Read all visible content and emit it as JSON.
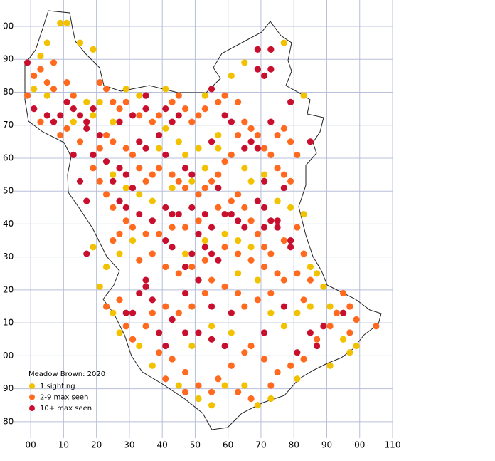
{
  "chart_data": {
    "type": "scatter",
    "legend_title": "Meadow Brown:  2020",
    "xlim": [
      -5,
      110
    ],
    "ylim": [
      -25,
      108
    ],
    "grid": true,
    "xticks": [
      {
        "value": 0,
        "label": "00"
      },
      10,
      20,
      30,
      40,
      50,
      60,
      70,
      80,
      90,
      {
        "value": 100,
        "label": "00"
      },
      110
    ],
    "yticks": [
      {
        "value": 100,
        "label": "00"
      },
      90,
      80,
      70,
      60,
      50,
      40,
      30,
      20,
      10,
      {
        "value": 0,
        "label": "00"
      },
      {
        "value": -10,
        "label": "90"
      },
      {
        "value": -20,
        "label": "80"
      }
    ],
    "series": [
      {
        "name": "1 sighting",
        "color": "#f2c200",
        "x": [
          5,
          3,
          9,
          11,
          15,
          19,
          5,
          1,
          29,
          33,
          25,
          19,
          17,
          41,
          53,
          61,
          65,
          77,
          83,
          41,
          45,
          47,
          51,
          57,
          53,
          49,
          43,
          37,
          33,
          29,
          25,
          65,
          67,
          71,
          79,
          75,
          83,
          85,
          87,
          89,
          91,
          95,
          97,
          99,
          91,
          81,
          73,
          69,
          65,
          59,
          55,
          51,
          45,
          37,
          33,
          27,
          25,
          21,
          23,
          27,
          31,
          19,
          63,
          69,
          73,
          77,
          81,
          85,
          61,
          55,
          49,
          47,
          53,
          59,
          63,
          67,
          57,
          39,
          13,
          21
        ],
        "y": [
          95,
          91,
          101,
          101,
          95,
          93,
          79,
          81,
          81,
          79,
          71,
          73,
          77,
          81,
          79,
          85,
          89,
          95,
          79,
          69,
          65,
          61,
          63,
          63,
          57,
          53,
          51,
          47,
          49,
          51,
          55,
          57,
          53,
          55,
          45,
          47,
          43,
          27,
          25,
          21,
          15,
          5,
          1,
          3,
          -3,
          -7,
          -13,
          -15,
          -9,
          -9,
          -15,
          -13,
          -9,
          -3,
          3,
          7,
          13,
          21,
          27,
          31,
          35,
          33,
          25,
          23,
          13,
          9,
          13,
          15,
          7,
          9,
          3,
          31,
          35,
          37,
          35,
          33,
          67,
          63,
          71,
          77
        ]
      },
      {
        "name": "2-9 max seen",
        "color": "#ff6a1f",
        "x": [
          1,
          3,
          5,
          7,
          11,
          13,
          21,
          23,
          25,
          27,
          29,
          33,
          37,
          39,
          43,
          45,
          47,
          49,
          51,
          53,
          57,
          59,
          63,
          65,
          67,
          69,
          71,
          73,
          75,
          77,
          79,
          81,
          79,
          77,
          75,
          63,
          61,
          59,
          57,
          55,
          53,
          51,
          47,
          45,
          43,
          39,
          37,
          35,
          33,
          31,
          29,
          25,
          23,
          21,
          19,
          21,
          23,
          25,
          29,
          31,
          35,
          39,
          43,
          47,
          51,
          57,
          61,
          63,
          65,
          67,
          69,
          71,
          73,
          77,
          81,
          83,
          81,
          77,
          73,
          69,
          65,
          63,
          59,
          55,
          53,
          49,
          45,
          41,
          37,
          35,
          39,
          43,
          47,
          51,
          55,
          57,
          61,
          65,
          67,
          71,
          75,
          79,
          83,
          87,
          91,
          93,
          97,
          99,
          105,
          73,
          67,
          63,
          47,
          41,
          27,
          25,
          33,
          37,
          41,
          45,
          49,
          53,
          59,
          63,
          67,
          71,
          75,
          27,
          23,
          29,
          31,
          9,
          11,
          15,
          3,
          7,
          -1,
          95,
          97,
          85,
          83
        ],
        "y": [
          85,
          87,
          83,
          81,
          83,
          79,
          83,
          81,
          77,
          75,
          77,
          73,
          71,
          73,
          77,
          79,
          75,
          71,
          73,
          75,
          77,
          79,
          77,
          71,
          69,
          67,
          63,
          61,
          57,
          55,
          53,
          61,
          65,
          69,
          67,
          67,
          61,
          59,
          55,
          53,
          51,
          49,
          51,
          53,
          55,
          57,
          55,
          53,
          57,
          61,
          63,
          65,
          67,
          63,
          57,
          53,
          49,
          45,
          41,
          39,
          37,
          37,
          39,
          39,
          41,
          45,
          47,
          49,
          45,
          41,
          37,
          33,
          31,
          35,
          39,
          31,
          25,
          23,
          19,
          17,
          15,
          19,
          21,
          23,
          19,
          15,
          13,
          15,
          13,
          9,
          1,
          -1,
          -5,
          -9,
          -11,
          -7,
          -3,
          1,
          3,
          -1,
          -5,
          -3,
          -1,
          5,
          9,
          13,
          7,
          11,
          9,
          -9,
          -13,
          -11,
          -11,
          -7,
          37,
          35,
          29,
          31,
          27,
          25,
          27,
          29,
          33,
          31,
          29,
          27,
          25,
          17,
          15,
          9,
          5,
          67,
          69,
          65,
          71,
          89,
          79,
          19,
          15,
          23,
          17
        ]
      },
      {
        "name": "10+ max seen",
        "color": "#c8102e",
        "x": [
          -1,
          1,
          5,
          7,
          9,
          11,
          13,
          15,
          17,
          17,
          19,
          21,
          13,
          19,
          23,
          27,
          29,
          25,
          31,
          15,
          17,
          27,
          29,
          33,
          37,
          41,
          43,
          45,
          49,
          53,
          55,
          51,
          53,
          55,
          49,
          43,
          41,
          47,
          35,
          35,
          33,
          31,
          37,
          29,
          39,
          41,
          47,
          51,
          55,
          59,
          69,
          71,
          73,
          75,
          71,
          65,
          63,
          61,
          59,
          69,
          71,
          73,
          69,
          73,
          61,
          59,
          45,
          41,
          39,
          35,
          33,
          31,
          27,
          55,
          49,
          47,
          41,
          69,
          67,
          73,
          71,
          77,
          79,
          77,
          71,
          81,
          85,
          87,
          89,
          95,
          85,
          17,
          65,
          79,
          75,
          79,
          57,
          51,
          47,
          43,
          55,
          61,
          57,
          35,
          35,
          43,
          55
        ],
        "y": [
          89,
          75,
          73,
          71,
          73,
          77,
          75,
          73,
          71,
          69,
          75,
          67,
          61,
          61,
          59,
          57,
          55,
          53,
          51,
          53,
          47,
          47,
          45,
          43,
          41,
          45,
          43,
          43,
          45,
          43,
          39,
          37,
          33,
          31,
          31,
          33,
          35,
          27,
          23,
          21,
          19,
          13,
          17,
          13,
          7,
          3,
          7,
          7,
          5,
          3,
          47,
          45,
          41,
          39,
          39,
          39,
          41,
          43,
          43,
          87,
          85,
          87,
          93,
          93,
          71,
          73,
          73,
          75,
          67,
          63,
          65,
          73,
          71,
          81,
          55,
          57,
          61,
          63,
          65,
          71,
          53,
          51,
          33,
          15,
          7,
          1,
          7,
          3,
          9,
          13,
          65,
          31,
          63,
          77,
          41,
          35,
          29,
          23,
          19,
          11,
          15,
          13,
          51,
          75,
          79,
          71,
          65
        ]
      }
    ]
  }
}
